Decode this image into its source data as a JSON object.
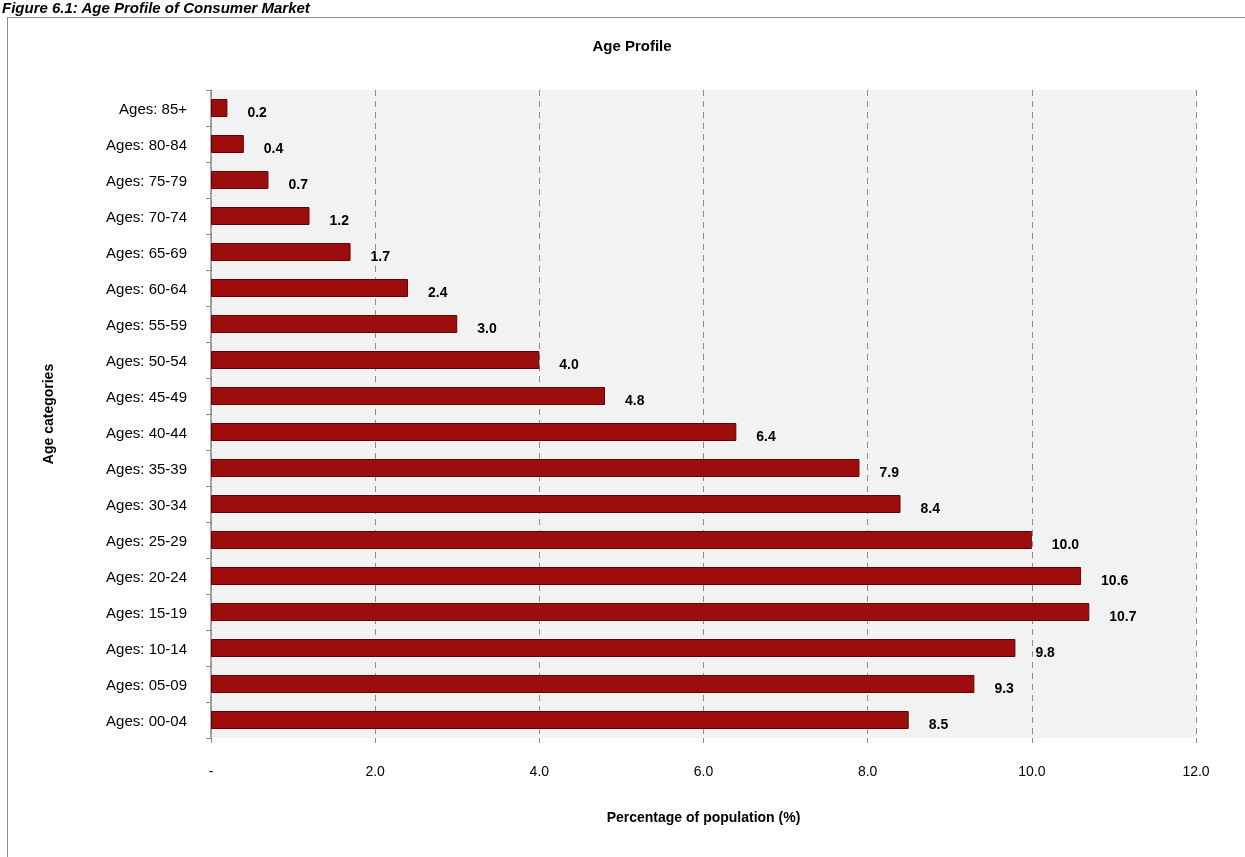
{
  "chart_data": {
    "type": "bar",
    "orientation": "horizontal",
    "title": "Age Profile",
    "annotations": [
      "Figure 6.1: Age Profile of Consumer Market"
    ],
    "xlabel": "Percentage of population (%)",
    "ylabel": "Age categories",
    "categories": [
      "Ages: 85+",
      "Ages: 80-84",
      "Ages: 75-79",
      "Ages: 70-74",
      "Ages: 65-69",
      "Ages: 60-64",
      "Ages: 55-59",
      "Ages: 50-54",
      "Ages: 45-49",
      "Ages: 40-44",
      "Ages: 35-39",
      "Ages: 30-34",
      "Ages: 25-29",
      "Ages: 20-24",
      "Ages: 15-19",
      "Ages: 10-14",
      "Ages: 05-09",
      "Ages: 00-04"
    ],
    "values": [
      0.2,
      0.4,
      0.7,
      1.2,
      1.7,
      2.4,
      3.0,
      4.0,
      4.8,
      6.4,
      7.9,
      8.4,
      10.0,
      10.6,
      10.7,
      9.8,
      9.3,
      8.5
    ],
    "value_labels": [
      "0.2",
      "0.4",
      "0.7",
      "1.2",
      "1.7",
      "2.4",
      "3.0",
      "4.0",
      "4.8",
      "6.4",
      "7.9",
      "8.4",
      "10.0",
      "10.6",
      "10.7",
      "9.8",
      "9.3",
      "8.5"
    ],
    "color": "#9c0e0e",
    "xlim": [
      0,
      12
    ],
    "xticks": [
      {
        "value": 0,
        "label": "-"
      },
      {
        "value": 2,
        "label": "2.0"
      },
      {
        "value": 4,
        "label": "4.0"
      },
      {
        "value": 6,
        "label": "6.0"
      },
      {
        "value": 8,
        "label": "8.0"
      },
      {
        "value": 10,
        "label": "10.0"
      },
      {
        "value": 12,
        "label": "12.0"
      }
    ],
    "grid": "x"
  }
}
